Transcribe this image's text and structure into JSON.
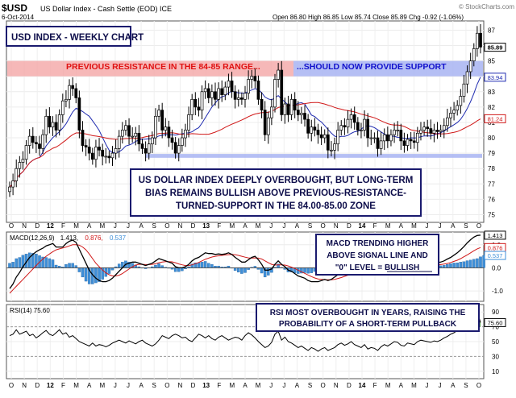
{
  "header": {
    "symbol": "$USD",
    "name": "US Dollar Index - Cash Settle (EOD) ICE",
    "date": "6-Oct-2014",
    "ohlc_text": "Open 86.80  High 86.85  Low 85.74  Close 85.89  Chg -0.92 (-1.06%)",
    "logo": "© StockCharts.com"
  },
  "annotations": {
    "title_box": "USD INDEX - WEEKLY CHART",
    "resistance_left": "PREVIOUS RESISTANCE IN THE 84-85 RANGE...",
    "resistance_right": "...SHOULD NOW PROVIDE SUPPORT",
    "main_note": [
      "US DOLLAR INDEX DEEPLY OVERBOUGHT, BUT LONG-TERM",
      "BIAS REMAINS BULLISH ABOVE PREVIOUS-RESISTANCE-",
      "TURNED-SUPPORT IN THE 84.00-85.00 ZONE"
    ],
    "macd_note": [
      "MACD TRENDING HIGHER",
      "ABOVE SIGNAL LINE AND",
      "\"0\" LEVEL = BULLISH"
    ],
    "macd_note_underline": "BULLISH",
    "rsi_note": [
      "RSI MOST OVERBOUGHT IN YEARS, RAISING THE",
      "PROBABILITY OF A SHORT-TERM PULLBACK"
    ]
  },
  "legends": {
    "macd_label": "MACD(12,26,9)",
    "macd_v1": "1.413,",
    "macd_v2": "0.876,",
    "macd_v3": "0.537",
    "rsi_label": "RSI(14) 75.60"
  },
  "colors": {
    "price": "#000000",
    "ma_short": "#1f2bb0",
    "ma_long": "#d01818",
    "signal": "#d01818",
    "hist": "#3f8fd8",
    "rsi": "#000000",
    "resistance_band": "#f4a6a6",
    "support_band": "#a8b4f2",
    "box_border": "#1a1a6e",
    "box_text": "#0d0d4a",
    "red_text": "#e01010",
    "blue_text": "#1010cc"
  },
  "chart_data": [
    {
      "type": "candlestick",
      "xlabel": "",
      "ylabel": "",
      "x_ticks": [
        "O",
        "N",
        "D",
        "12",
        "F",
        "M",
        "A",
        "M",
        "J",
        "J",
        "A",
        "S",
        "O",
        "N",
        "D",
        "13",
        "F",
        "M",
        "A",
        "M",
        "J",
        "J",
        "A",
        "S",
        "O",
        "N",
        "D",
        "14",
        "F",
        "M",
        "A",
        "M",
        "J",
        "J",
        "A",
        "S",
        "O"
      ],
      "y_ticks": [
        75,
        76,
        77,
        78,
        79,
        80,
        81,
        82,
        83,
        84,
        85,
        86,
        87
      ],
      "ylim": [
        74.5,
        87.6
      ],
      "value_tags": [
        "85.89",
        "83.94",
        "81.24"
      ],
      "bands": [
        [
          84,
          85
        ],
        [
          78.7,
          78.95
        ]
      ],
      "series": [
        {
          "name": "close",
          "values": [
            76.8,
            77.2,
            78.0,
            78.4,
            78.6,
            79.5,
            80.1,
            79.7,
            79.6,
            79.3,
            80.2,
            81.4,
            80.7,
            81.0,
            80.5,
            81.5,
            82.4,
            82.5,
            83.4,
            83.2,
            82.6,
            80.5,
            79.5,
            79.4,
            79.0,
            78.6,
            79.4,
            79.2,
            78.8,
            78.8,
            78.7,
            79.0,
            79.3,
            80.1,
            80.5,
            80.8,
            80.1,
            80.1,
            80.3,
            79.6,
            79.3,
            79.0,
            79.6,
            80.0,
            81.4,
            81.8,
            80.5,
            80.7,
            80.0,
            79.7,
            79.0,
            79.5,
            80.0,
            80.5,
            81.5,
            82.5,
            82.0,
            81.8,
            83.0,
            83.2,
            82.6,
            83.0,
            82.5,
            83.2,
            82.8,
            83.3,
            83.7,
            83.0,
            82.5,
            82.6,
            82.5,
            82.9,
            83.8,
            84.0,
            83.7,
            82.5,
            81.8,
            80.2,
            81.3,
            82.0,
            83.8,
            84.4,
            81.5,
            82.2,
            81.5,
            82.5,
            81.8,
            81.5,
            81.6,
            81.2,
            80.3,
            80.7,
            80.5,
            80.2,
            80.0,
            80.2,
            79.2,
            79.2,
            79.6,
            80.5,
            80.8,
            80.7,
            81.2,
            81.5,
            81.0,
            80.5,
            80.5,
            81.2,
            80.0,
            80.0,
            80.0,
            79.3,
            79.8,
            80.2,
            79.8,
            80.2,
            80.5,
            80.5,
            79.8,
            79.5,
            79.9,
            79.8,
            79.7,
            80.3,
            80.5,
            80.7,
            80.6,
            80.3,
            80.5,
            80.4,
            80.5,
            80.8,
            81.3,
            81.6,
            81.8,
            82.1,
            82.7,
            83.5,
            84.3,
            85.0,
            85.8,
            86.8,
            85.9
          ]
        }
      ]
    },
    {
      "type": "line",
      "xlabel": "",
      "ylabel": "",
      "y_ticks": [
        1.0,
        0.0,
        -1.0
      ],
      "ylim": [
        -1.45,
        1.55
      ],
      "value_tags": [
        "1.413",
        "0.876",
        "0.537"
      ],
      "series": [
        {
          "name": "MACD(12,26,9)",
          "values": [
            -0.9,
            -0.7,
            -0.4,
            -0.2,
            0.05,
            0.25,
            0.45,
            0.58,
            0.7,
            0.78,
            0.85,
            0.95,
            1.0,
            1.05,
            0.9,
            0.9,
            0.9,
            1.05,
            1.15,
            1.2,
            1.1,
            0.8,
            0.5,
            0.2,
            -0.1,
            -0.3,
            -0.45,
            -0.55,
            -0.6,
            -0.6,
            -0.55,
            -0.45,
            -0.3,
            -0.15,
            0.0,
            0.15,
            0.2,
            0.25,
            0.25,
            0.2,
            0.15,
            0.1,
            0.15,
            0.2,
            0.3,
            0.4,
            0.35,
            0.3,
            0.25,
            0.2,
            0.05,
            0.0,
            0.0,
            0.05,
            0.15,
            0.3,
            0.4,
            0.45,
            0.55,
            0.65,
            0.62,
            0.62,
            0.58,
            0.6,
            0.58,
            0.6,
            0.65,
            0.58,
            0.45,
            0.35,
            0.25,
            0.25,
            0.35,
            0.45,
            0.5,
            0.35,
            0.15,
            -0.1,
            -0.1,
            -0.05,
            0.15,
            0.3,
            0.15,
            0.05,
            -0.1,
            -0.15,
            -0.25,
            -0.35,
            -0.4,
            -0.45,
            -0.55,
            -0.6,
            -0.6,
            -0.6,
            -0.55,
            -0.5,
            -0.55,
            -0.5,
            -0.4,
            -0.3,
            -0.2,
            -0.15,
            -0.05,
            0.0,
            0.0,
            0.0,
            -0.05,
            -0.05,
            -0.1,
            -0.15,
            -0.15,
            -0.2,
            -0.25,
            -0.2,
            -0.2,
            -0.15,
            -0.1,
            -0.05,
            -0.05,
            -0.05,
            -0.05,
            0.0,
            0.05,
            0.1,
            0.15,
            0.15,
            0.18,
            0.22,
            0.2,
            0.22,
            0.25,
            0.3,
            0.38,
            0.45,
            0.55,
            0.65,
            0.78,
            0.92,
            1.08,
            1.22,
            1.33,
            1.4,
            1.413
          ]
        },
        {
          "name": "signal",
          "values": [
            -1.1,
            -0.95,
            -0.8,
            -0.65,
            -0.5,
            -0.35,
            -0.2,
            -0.05,
            0.1,
            0.25,
            0.38,
            0.5,
            0.6,
            0.7,
            0.78,
            0.82,
            0.86,
            0.9,
            0.95,
            1.0,
            1.0,
            0.98,
            0.9,
            0.78,
            0.6,
            0.4,
            0.2,
            0.05,
            -0.1,
            -0.22,
            -0.3,
            -0.35,
            -0.35,
            -0.32,
            -0.25,
            -0.15,
            -0.05,
            0.05,
            0.12,
            0.15,
            0.15,
            0.14,
            0.14,
            0.15,
            0.18,
            0.22,
            0.25,
            0.27,
            0.27,
            0.26,
            0.22,
            0.17,
            0.13,
            0.1,
            0.1,
            0.13,
            0.18,
            0.23,
            0.3,
            0.37,
            0.42,
            0.47,
            0.5,
            0.52,
            0.54,
            0.56,
            0.57,
            0.58,
            0.57,
            0.54,
            0.5,
            0.46,
            0.43,
            0.42,
            0.43,
            0.42,
            0.38,
            0.3,
            0.22,
            0.15,
            0.12,
            0.13,
            0.13,
            0.12,
            0.08,
            0.03,
            -0.03,
            -0.1,
            -0.17,
            -0.24,
            -0.31,
            -0.38,
            -0.44,
            -0.48,
            -0.5,
            -0.52,
            -0.52,
            -0.52,
            -0.5,
            -0.46,
            -0.42,
            -0.37,
            -0.32,
            -0.26,
            -0.2,
            -0.15,
            -0.12,
            -0.1,
            -0.1,
            -0.11,
            -0.12,
            -0.13,
            -0.15,
            -0.16,
            -0.17,
            -0.17,
            -0.16,
            -0.15,
            -0.13,
            -0.12,
            -0.11,
            -0.1,
            -0.08,
            -0.05,
            -0.02,
            0.01,
            0.04,
            0.07,
            0.1,
            0.12,
            0.14,
            0.16,
            0.19,
            0.23,
            0.28,
            0.33,
            0.4,
            0.48,
            0.56,
            0.65,
            0.74,
            0.82,
            0.876
          ]
        },
        {
          "name": "histogram",
          "values": [
            0.2,
            0.25,
            0.4,
            0.45,
            0.55,
            0.6,
            0.65,
            0.63,
            0.6,
            0.53,
            0.47,
            0.45,
            0.4,
            0.35,
            0.12,
            0.08,
            0.04,
            0.15,
            0.2,
            0.2,
            0.1,
            -0.18,
            -0.4,
            -0.58,
            -0.7,
            -0.7,
            -0.65,
            -0.6,
            -0.5,
            -0.38,
            -0.25,
            -0.1,
            0.05,
            0.17,
            0.25,
            0.3,
            0.25,
            0.2,
            0.13,
            0.05,
            0.0,
            -0.04,
            0.01,
            0.05,
            0.12,
            0.18,
            0.1,
            0.03,
            -0.02,
            -0.06,
            -0.17,
            -0.17,
            -0.13,
            -0.05,
            0.05,
            0.17,
            0.22,
            0.22,
            0.25,
            0.28,
            0.2,
            0.15,
            0.08,
            0.08,
            0.04,
            0.04,
            0.08,
            0.0,
            -0.12,
            -0.19,
            -0.25,
            -0.21,
            -0.08,
            0.03,
            0.07,
            -0.07,
            -0.23,
            -0.4,
            -0.32,
            -0.2,
            0.03,
            0.17,
            0.02,
            -0.07,
            -0.18,
            -0.18,
            -0.22,
            -0.25,
            -0.23,
            -0.21,
            -0.24,
            -0.22,
            -0.16,
            -0.12,
            -0.05,
            0.02,
            -0.03,
            0.02,
            0.1,
            0.16,
            0.22,
            0.22,
            0.27,
            0.26,
            0.2,
            0.15,
            0.07,
            0.05,
            0.0,
            -0.04,
            -0.03,
            -0.07,
            -0.1,
            -0.04,
            -0.03,
            0.02,
            0.06,
            0.08,
            0.07,
            0.06,
            0.03,
            0.05,
            0.08,
            0.1,
            0.13,
            0.11,
            0.11,
            0.12,
            0.08,
            0.08,
            0.09,
            0.11,
            0.15,
            0.18,
            0.21,
            0.22,
            0.25,
            0.27,
            0.31,
            0.34,
            0.37,
            0.4,
            0.48,
            0.537
          ]
        }
      ]
    },
    {
      "type": "line",
      "xlabel": "",
      "ylabel": "",
      "x_ticks": [
        "O",
        "N",
        "D",
        "12",
        "F",
        "M",
        "A",
        "M",
        "J",
        "J",
        "A",
        "S",
        "O",
        "N",
        "D",
        "13",
        "F",
        "M",
        "A",
        "M",
        "J",
        "J",
        "A",
        "S",
        "O",
        "N",
        "D",
        "14",
        "F",
        "M",
        "A",
        "M",
        "J",
        "J",
        "A",
        "S",
        "O"
      ],
      "y_ticks": [
        90,
        70,
        50,
        30,
        10
      ],
      "ylim": [
        0,
        100
      ],
      "value_tags": [
        "75.60"
      ],
      "series": [
        {
          "name": "RSI(14)",
          "values": [
            58,
            60,
            66,
            60,
            62,
            64,
            58,
            60,
            55,
            58,
            62,
            65,
            60,
            58,
            62,
            66,
            60,
            62,
            56,
            58,
            54,
            50,
            48,
            46,
            44,
            48,
            44,
            46,
            45,
            43,
            45,
            48,
            50,
            52,
            50,
            48,
            51,
            49,
            47,
            50,
            52,
            48,
            46,
            44,
            47,
            52,
            58,
            56,
            54,
            58,
            60,
            58,
            55,
            56,
            52,
            50,
            55,
            60,
            58,
            55,
            58,
            54,
            52,
            56,
            58,
            55,
            52,
            54,
            56,
            55,
            52,
            58,
            62,
            59,
            55,
            50,
            46,
            42,
            44,
            49,
            60,
            64,
            52,
            56,
            50,
            48,
            45,
            42,
            44,
            41,
            38,
            42,
            40,
            37,
            40,
            42,
            38,
            40,
            42,
            46,
            48,
            45,
            47,
            50,
            46,
            44,
            42,
            46,
            40,
            42,
            41,
            38,
            43,
            46,
            44,
            47,
            50,
            49,
            45,
            44,
            48,
            47,
            46,
            50,
            52,
            51,
            50,
            49,
            51,
            50,
            52,
            55,
            57,
            60,
            62,
            65,
            70,
            74,
            78,
            82,
            86,
            91,
            75.6
          ]
        }
      ]
    }
  ]
}
